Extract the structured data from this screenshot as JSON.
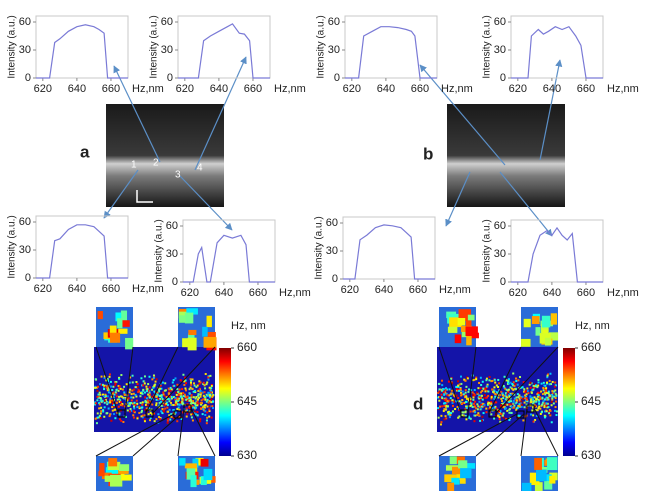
{
  "panel_labels": [
    "a",
    "b",
    "c",
    "d"
  ],
  "point_labels": [
    "1",
    "2",
    "3",
    "4"
  ],
  "chart_data": [
    {
      "type": "line",
      "ylabel": "Intensity (a.u.)",
      "xlabel": "Hz,nm",
      "color": "#7a7ad6",
      "x": [
        616,
        624,
        627,
        630,
        635,
        640,
        645,
        650,
        653,
        656,
        658,
        660,
        670
      ],
      "values": [
        0,
        0,
        38,
        42,
        50,
        55,
        57,
        55,
        52,
        48,
        0,
        0,
        0
      ],
      "xlim": [
        616,
        670
      ],
      "xticks": [
        620,
        640,
        660
      ],
      "ylim": [
        0,
        60
      ],
      "yticks": [
        0,
        30,
        60
      ]
    },
    {
      "type": "line",
      "ylabel": "Intensity (a.u.)",
      "xlabel": "Hz,nm",
      "color": "#7a7ad6",
      "x": [
        616,
        628,
        631,
        635,
        640,
        645,
        648,
        652,
        655,
        658,
        660,
        670
      ],
      "values": [
        0,
        0,
        40,
        45,
        50,
        55,
        58,
        48,
        47,
        40,
        0,
        0
      ],
      "xlim": [
        616,
        670
      ],
      "xticks": [
        620,
        640,
        660
      ],
      "ylim": [
        0,
        60
      ],
      "yticks": [
        0,
        30,
        60
      ]
    },
    {
      "type": "line",
      "ylabel": "Intensity (a.u.)",
      "xlabel": "Hz,nm",
      "color": "#7a7ad6",
      "x": [
        616,
        624,
        627,
        632,
        637,
        642,
        647,
        652,
        655,
        657,
        660,
        670
      ],
      "values": [
        0,
        0,
        45,
        50,
        55,
        55,
        54,
        52,
        50,
        45,
        0,
        0
      ],
      "xlim": [
        616,
        670
      ],
      "xticks": [
        620,
        640,
        660
      ],
      "ylim": [
        0,
        60
      ],
      "yticks": [
        0,
        30,
        60
      ]
    },
    {
      "type": "line",
      "ylabel": "Intensity (a.u.)",
      "xlabel": "Hz,nm",
      "color": "#7a7ad6",
      "x": [
        616,
        626,
        628,
        632,
        635,
        638,
        642,
        646,
        650,
        654,
        657,
        660,
        670
      ],
      "values": [
        0,
        0,
        45,
        52,
        47,
        50,
        55,
        52,
        55,
        45,
        35,
        0,
        0
      ],
      "xlim": [
        616,
        670
      ],
      "xticks": [
        620,
        640,
        660
      ],
      "ylim": [
        0,
        60
      ],
      "yticks": [
        0,
        30,
        60
      ]
    },
    {
      "type": "line",
      "ylabel": "Intensity (a.u.)",
      "xlabel": "Hz,nm",
      "color": "#7a7ad6",
      "x": [
        616,
        624,
        627,
        630,
        635,
        640,
        645,
        650,
        653,
        656,
        658,
        660,
        670
      ],
      "values": [
        0,
        0,
        40,
        42,
        52,
        57,
        57,
        55,
        50,
        45,
        0,
        0,
        0
      ],
      "xlim": [
        616,
        670
      ],
      "xticks": [
        620,
        640,
        660
      ],
      "ylim": [
        0,
        60
      ],
      "yticks": [
        0,
        30,
        60
      ]
    },
    {
      "type": "line",
      "ylabel": "Intensity (a.u.)",
      "xlabel": "Hz,nm",
      "color": "#7a7ad6",
      "x": [
        616,
        622,
        625,
        627,
        630,
        632,
        636,
        640,
        645,
        650,
        653,
        655,
        657,
        670
      ],
      "values": [
        0,
        0,
        30,
        37,
        0,
        0,
        42,
        50,
        47,
        50,
        40,
        0,
        0,
        0
      ],
      "xlim": [
        616,
        670
      ],
      "xticks": [
        620,
        640,
        660
      ],
      "ylim": [
        0,
        60
      ],
      "yticks": [
        0,
        30,
        60
      ]
    },
    {
      "type": "line",
      "ylabel": "Intensity (a.u.)",
      "xlabel": "Hz,nm",
      "color": "#7a7ad6",
      "x": [
        616,
        623,
        626,
        630,
        635,
        640,
        645,
        650,
        653,
        656,
        658,
        670
      ],
      "values": [
        0,
        0,
        42,
        47,
        55,
        58,
        57,
        55,
        50,
        45,
        0,
        0
      ],
      "xlim": [
        616,
        670
      ],
      "xticks": [
        620,
        640,
        660
      ],
      "ylim": [
        0,
        60
      ],
      "yticks": [
        0,
        30,
        60
      ]
    },
    {
      "type": "line",
      "ylabel": "Intensity (a.u.)",
      "xlabel": "Hz,nm",
      "color": "#7a7ad6",
      "x": [
        616,
        626,
        629,
        633,
        637,
        640,
        643,
        646,
        649,
        652,
        655,
        670
      ],
      "values": [
        0,
        0,
        30,
        50,
        55,
        50,
        58,
        50,
        45,
        52,
        0,
        0
      ],
      "xlim": [
        616,
        670
      ],
      "xticks": [
        620,
        640,
        660
      ],
      "ylim": [
        0,
        60
      ],
      "yticks": [
        0,
        30,
        60
      ]
    },
    {
      "type": "colorbar",
      "title": "Hz, nm",
      "ylim": [
        630,
        660
      ],
      "yticks": [
        630,
        645,
        660
      ]
    },
    {
      "type": "colorbar",
      "title": "Hz, nm",
      "ylim": [
        630,
        660
      ],
      "yticks": [
        630,
        645,
        660
      ]
    }
  ]
}
